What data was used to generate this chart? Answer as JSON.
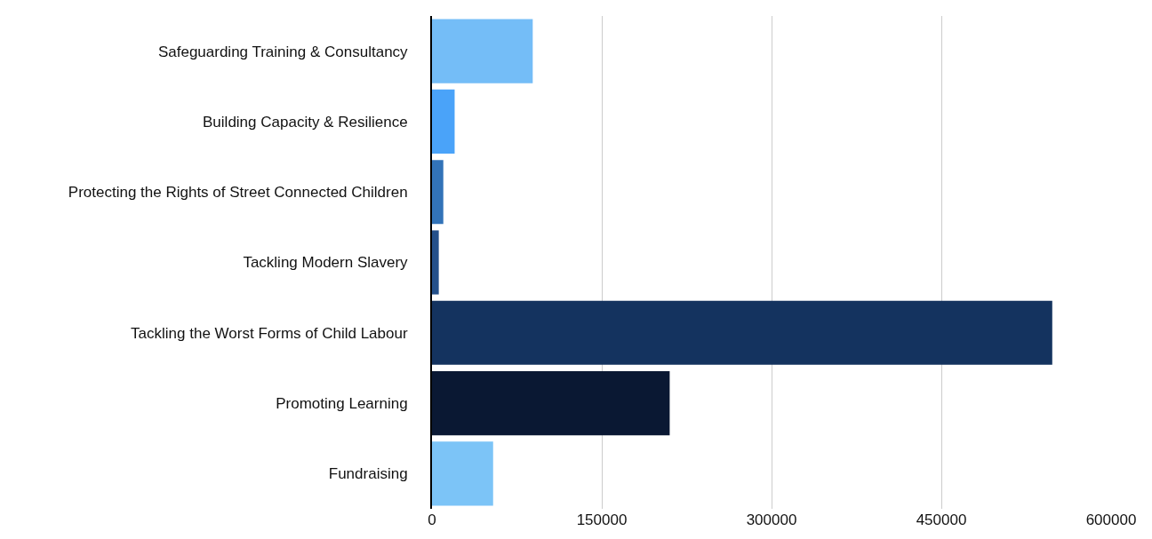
{
  "chart_data": {
    "type": "bar",
    "orientation": "horizontal",
    "categories": [
      "Safeguarding Training & Consultancy",
      "Building Capacity & Resilience",
      "Protecting the Rights of Street Connected Children",
      "Tackling Modern Slavery",
      "Tackling the Worst Forms of Child Labour",
      "Promoting Learning",
      "Fundraising"
    ],
    "values": [
      89000,
      20000,
      10000,
      6000,
      548000,
      210000,
      54000
    ],
    "colors": [
      "#74bdf7",
      "#4aa3f9",
      "#3273b8",
      "#24508a",
      "#14335f",
      "#0a1833",
      "#7cc4f7"
    ],
    "xlim": [
      0,
      600000
    ],
    "xticks": [
      0,
      150000,
      300000,
      450000,
      600000
    ],
    "grid": "x"
  }
}
